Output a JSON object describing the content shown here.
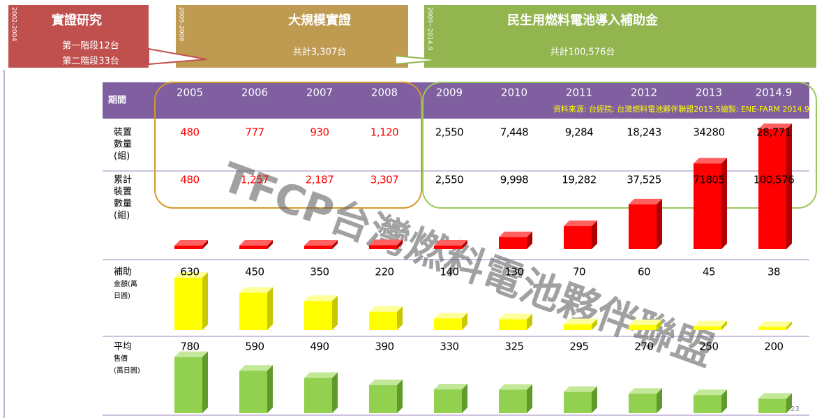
{
  "periods": [
    {
      "range": "2002-2004",
      "title": "實證研究",
      "lines": [
        "第一階段12台",
        "第二階段33台"
      ]
    },
    {
      "range": "2005-2008",
      "title": "大規模實證",
      "lines": [
        "共計3,307台"
      ]
    },
    {
      "range": "2009~2014.9",
      "title": "民生用燃料電池導入補助金",
      "lines": [
        "共計100,576台"
      ]
    }
  ],
  "table": {
    "header_label": "期間",
    "years": [
      "2005",
      "2006",
      "2007",
      "2008",
      "2009",
      "2010",
      "2011",
      "2012",
      "2013",
      "2014.9"
    ],
    "source": "資料來源: 台經院; 台灣燃料電池夥伴聯盟2015.5繪製; ENE-FARM 2014.9",
    "rows": [
      {
        "label": [
          "裝置",
          "數量",
          "(組)"
        ],
        "values": [
          "480",
          "777",
          "930",
          "1,120",
          "2,550",
          "7,448",
          "9,284",
          "18,243",
          "34280",
          "28,771"
        ]
      },
      {
        "label": [
          "累計",
          "裝置",
          "數量",
          "(組)"
        ],
        "values": [
          "480",
          "1,257",
          "2,187",
          "3,307",
          "2,550",
          "9,998",
          "19,282",
          "37,525",
          "71805",
          "100,576"
        ]
      },
      {
        "label": [
          "補助",
          "金額(萬",
          "日圓)"
        ],
        "values": [
          "630",
          "450",
          "350",
          "220",
          "140",
          "130",
          "70",
          "60",
          "45",
          "38"
        ]
      },
      {
        "label": [
          "平均",
          "售價",
          "(萬日圓)"
        ],
        "values": [
          "780",
          "590",
          "490",
          "390",
          "330",
          "325",
          "295",
          "270",
          "250",
          "200"
        ]
      }
    ]
  },
  "watermark": "TFCP台灣燃料電池夥伴聯盟",
  "page_number": "23"
}
